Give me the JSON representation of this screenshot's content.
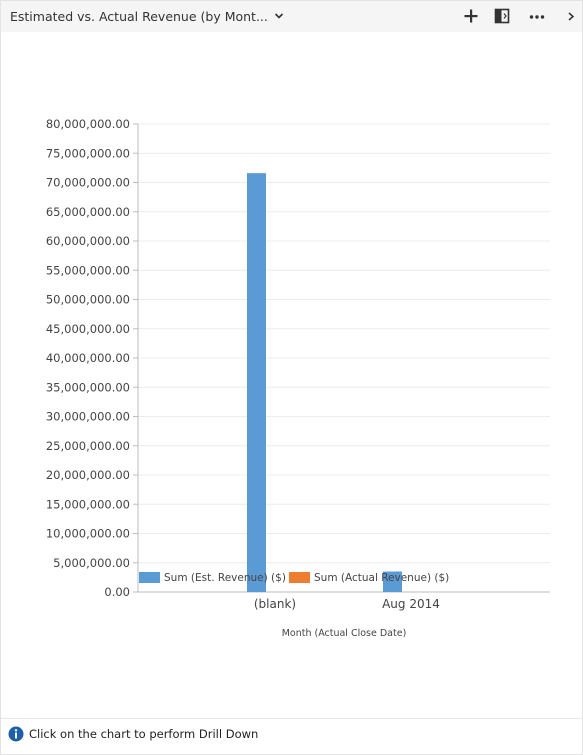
{
  "header": {
    "title": "Estimated vs. Actual Revenue (by Mont...",
    "icons": [
      "chevron-down-icon",
      "plus-icon",
      "expand-icon",
      "more-icon",
      "chevron-right-icon"
    ]
  },
  "chart_data": {
    "type": "bar",
    "categories": [
      "(blank)",
      "Aug 2014"
    ],
    "series": [
      {
        "name": "Sum (Est. Revenue) ($)",
        "values": [
          71600000,
          3500000
        ],
        "color": "#5b9bd5"
      },
      {
        "name": "Sum (Actual Revenue) ($)",
        "values": [
          0,
          0
        ],
        "color": "#ed7d31"
      }
    ],
    "xlabel": "Month (Actual Close Date)",
    "ylabel": "",
    "ylim": [
      0,
      80000000
    ],
    "yticks": [
      0,
      5000000,
      10000000,
      15000000,
      20000000,
      25000000,
      30000000,
      35000000,
      40000000,
      45000000,
      50000000,
      55000000,
      60000000,
      65000000,
      70000000,
      75000000,
      80000000
    ],
    "ytick_labels": [
      "0.00",
      "5,000,000.00",
      "10,000,000.00",
      "15,000,000.00",
      "20,000,000.00",
      "25,000,000.00",
      "30,000,000.00",
      "35,000,000.00",
      "40,000,000.00",
      "45,000,000.00",
      "50,000,000.00",
      "55,000,000.00",
      "60,000,000.00",
      "65,000,000.00",
      "70,000,000.00",
      "75,000,000.00",
      "80,000,000.00"
    ],
    "grid": true,
    "legend": "bottom"
  },
  "footer": {
    "info_icon": "info-icon",
    "text": "Click on the chart to perform Drill Down"
  }
}
